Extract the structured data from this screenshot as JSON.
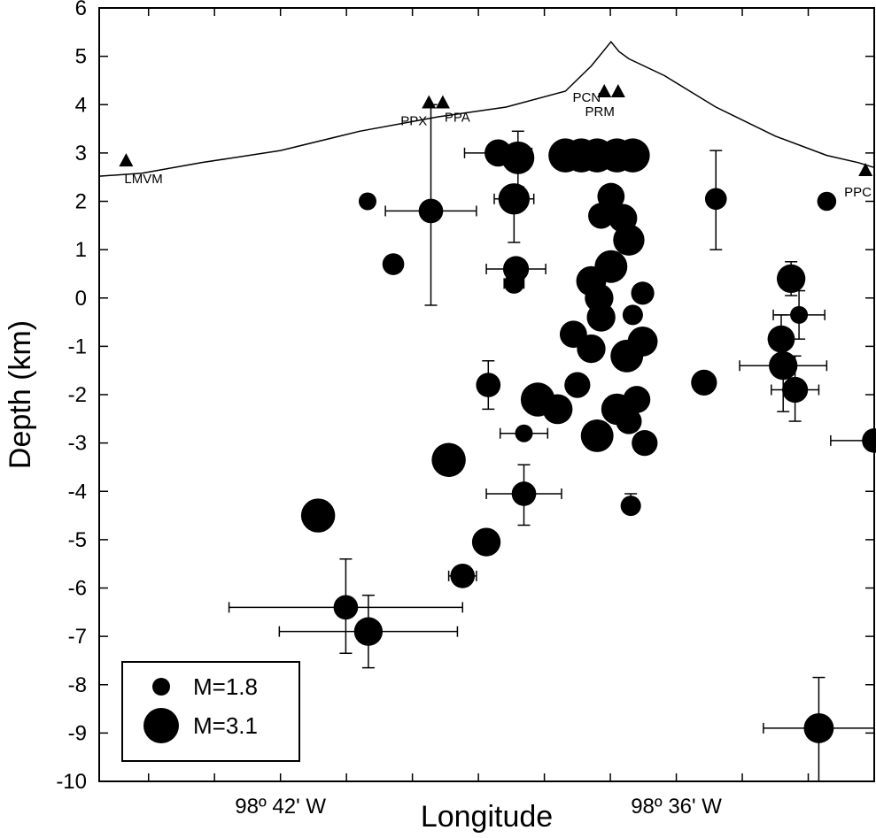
{
  "chart_data": {
    "type": "scatter",
    "title": "",
    "xlabel": "Longitude",
    "ylabel": "Depth (km)",
    "ylim": [
      -10,
      6
    ],
    "yticks": [
      6,
      5,
      4,
      3,
      2,
      1,
      0,
      -1,
      -2,
      -3,
      -4,
      -5,
      -6,
      -7,
      -8,
      -9,
      -10
    ],
    "xlim": [
      -98.7458,
      -98.55
    ],
    "xtick_values": [
      -98.7,
      -98.6
    ],
    "xtick_labels": [
      "98º 42' W",
      "98º 36' W"
    ],
    "grid": false,
    "legend": {
      "position": "bottom-left",
      "entries": [
        {
          "label": "M=1.8",
          "magnitude": 1.8
        },
        {
          "label": "M=3.1",
          "magnitude": 3.1
        }
      ]
    },
    "topography": [
      [
        -98.7458,
        2.52
      ],
      [
        -98.735,
        2.58
      ],
      [
        -98.72,
        2.8
      ],
      [
        -98.7,
        3.05
      ],
      [
        -98.68,
        3.45
      ],
      [
        -98.66,
        3.75
      ],
      [
        -98.643,
        3.95
      ],
      [
        -98.628,
        4.28
      ],
      [
        -98.6215,
        4.8
      ],
      [
        -98.6185,
        5.1
      ],
      [
        -98.6165,
        5.3
      ],
      [
        -98.6145,
        5.1
      ],
      [
        -98.612,
        4.95
      ],
      [
        -98.603,
        4.6
      ],
      [
        -98.59,
        3.95
      ],
      [
        -98.575,
        3.35
      ],
      [
        -98.562,
        2.95
      ],
      [
        -98.554,
        2.8
      ],
      [
        -98.55,
        2.7
      ]
    ],
    "stations": [
      {
        "name": "LMVM",
        "lon": -98.739,
        "elev": 2.85
      },
      {
        "name": "PPX",
        "lon": -98.6625,
        "elev": 4.05
      },
      {
        "name": "PPA",
        "lon": -98.659,
        "elev": 4.05
      },
      {
        "name": "PCN",
        "lon": -98.6182,
        "elev": 4.28
      },
      {
        "name": "PRM",
        "lon": -98.6147,
        "elev": 4.28
      },
      {
        "name": "PPC",
        "lon": -98.5522,
        "elev": 2.65
      }
    ],
    "series": [
      {
        "name": "hypocenters",
        "points": [
          {
            "lon": -98.678,
            "depth": 2.0,
            "mag": 1.8
          },
          {
            "lon": -98.662,
            "depth": 1.8,
            "mag": 2.3,
            "lon_err": 0.0115,
            "depth_err_up": 2.2,
            "depth_err_down": 1.95
          },
          {
            "lon": -98.6715,
            "depth": 0.7,
            "mag": 2.1
          },
          {
            "lon": -98.645,
            "depth": 3.0,
            "mag": 2.5,
            "lon_err": 0.0085
          },
          {
            "lon": -98.64,
            "depth": 2.9,
            "mag": 2.9,
            "depth_err_up": 0.55,
            "depth_err_down": 0.6
          },
          {
            "lon": -98.641,
            "depth": 2.05,
            "mag": 2.8,
            "lon_err": 0.005,
            "depth_err_up": 0.25,
            "depth_err_down": 0.9
          },
          {
            "lon": -98.6405,
            "depth": 0.6,
            "mag": 2.4,
            "lon_err": 0.0075
          },
          {
            "lon": -98.641,
            "depth": 0.3,
            "mag": 2.0,
            "lon_err": 0.0025
          },
          {
            "lon": -98.6475,
            "depth": -1.8,
            "mag": 2.3,
            "depth_err_up": 0.5,
            "depth_err_down": 0.5
          },
          {
            "lon": -98.6385,
            "depth": -2.8,
            "mag": 1.8,
            "lon_err": 0.006
          },
          {
            "lon": -98.6385,
            "depth": -4.05,
            "mag": 2.3,
            "lon_err": 0.0095,
            "depth_err_up": 0.6,
            "depth_err_down": 0.65
          },
          {
            "lon": -98.648,
            "depth": -5.05,
            "mag": 2.6
          },
          {
            "lon": -98.654,
            "depth": -5.75,
            "mag": 2.3,
            "lon_err": 0.0035
          },
          {
            "lon": -98.6575,
            "depth": -3.35,
            "mag": 3.0
          },
          {
            "lon": -98.6905,
            "depth": -4.5,
            "mag": 3.0
          },
          {
            "lon": -98.6835,
            "depth": -6.4,
            "mag": 2.3,
            "lon_err": 0.0295,
            "depth_err_up": 1.0,
            "depth_err_down": 0.95
          },
          {
            "lon": -98.6778,
            "depth": -6.9,
            "mag": 2.6,
            "lon_err": 0.0225,
            "depth_err_up": 0.75,
            "depth_err_down": 0.75
          },
          {
            "lon": -98.628,
            "depth": 2.95,
            "mag": 3.0
          },
          {
            "lon": -98.624,
            "depth": 2.95,
            "mag": 3.0
          },
          {
            "lon": -98.62,
            "depth": 2.95,
            "mag": 3.0
          },
          {
            "lon": -98.615,
            "depth": 2.95,
            "mag": 3.0
          },
          {
            "lon": -98.611,
            "depth": 2.95,
            "mag": 3.0
          },
          {
            "lon": -98.6165,
            "depth": 2.1,
            "mag": 2.5
          },
          {
            "lon": -98.619,
            "depth": 1.7,
            "mag": 2.4,
            "lon_err": 0.0025
          },
          {
            "lon": -98.6135,
            "depth": 1.65,
            "mag": 2.6
          },
          {
            "lon": -98.612,
            "depth": 1.2,
            "mag": 2.8
          },
          {
            "lon": -98.6165,
            "depth": 0.65,
            "mag": 2.9
          },
          {
            "lon": -98.6215,
            "depth": 0.35,
            "mag": 2.7
          },
          {
            "lon": -98.6195,
            "depth": 0.0,
            "mag": 2.6
          },
          {
            "lon": -98.6085,
            "depth": 0.1,
            "mag": 2.2
          },
          {
            "lon": -98.619,
            "depth": -0.4,
            "mag": 2.6
          },
          {
            "lon": -98.611,
            "depth": -0.35,
            "mag": 2.0
          },
          {
            "lon": -98.626,
            "depth": -0.75,
            "mag": 2.5
          },
          {
            "lon": -98.6215,
            "depth": -1.05,
            "mag": 2.6
          },
          {
            "lon": -98.6125,
            "depth": -1.2,
            "mag": 2.9
          },
          {
            "lon": -98.6085,
            "depth": -0.9,
            "mag": 2.7
          },
          {
            "lon": -98.625,
            "depth": -1.8,
            "mag": 2.4
          },
          {
            "lon": -98.635,
            "depth": -2.1,
            "mag": 3.0
          },
          {
            "lon": -98.63,
            "depth": -2.3,
            "mag": 2.7
          },
          {
            "lon": -98.615,
            "depth": -2.3,
            "mag": 2.8
          },
          {
            "lon": -98.61,
            "depth": -2.1,
            "mag": 2.5
          },
          {
            "lon": -98.62,
            "depth": -2.85,
            "mag": 2.9
          },
          {
            "lon": -98.612,
            "depth": -2.55,
            "mag": 2.4
          },
          {
            "lon": -98.608,
            "depth": -3.0,
            "mag": 2.4
          },
          {
            "lon": -98.6115,
            "depth": -4.3,
            "mag": 2.0,
            "depth_err_up": 0.25,
            "depth_err_down": 0.0
          },
          {
            "lon": -98.593,
            "depth": -1.75,
            "mag": 2.4
          },
          {
            "lon": -98.59,
            "depth": 2.05,
            "mag": 2.1,
            "depth_err_up": 1.0,
            "depth_err_down": 1.05
          },
          {
            "lon": -98.5735,
            "depth": -0.85,
            "mag": 2.5,
            "depth_err_up": 0.5,
            "depth_err_down": 0.5
          },
          {
            "lon": -98.573,
            "depth": -1.4,
            "mag": 2.6,
            "lon_err": 0.011,
            "depth_err_up": 0.25,
            "depth_err_down": 0.95
          },
          {
            "lon": -98.571,
            "depth": 0.4,
            "mag": 2.6,
            "depth_err_up": 0.35,
            "depth_err_down": 0.35
          },
          {
            "lon": -98.569,
            "depth": -0.35,
            "mag": 1.8,
            "lon_err": 0.0065,
            "depth_err_up": 0.5,
            "depth_err_down": 0.5
          },
          {
            "lon": -98.57,
            "depth": -1.9,
            "mag": 2.4,
            "lon_err": 0.006,
            "depth_err_up": 0.7,
            "depth_err_down": 0.65
          },
          {
            "lon": -98.562,
            "depth": 2.0,
            "mag": 1.9
          },
          {
            "lon": -98.55,
            "depth": -2.95,
            "mag": 2.3,
            "lon_err": 0.011
          },
          {
            "lon": -98.564,
            "depth": -8.9,
            "mag": 2.7,
            "lon_err": 0.014,
            "depth_err_up": 1.05,
            "depth_err_down": 1.1
          }
        ]
      }
    ]
  }
}
